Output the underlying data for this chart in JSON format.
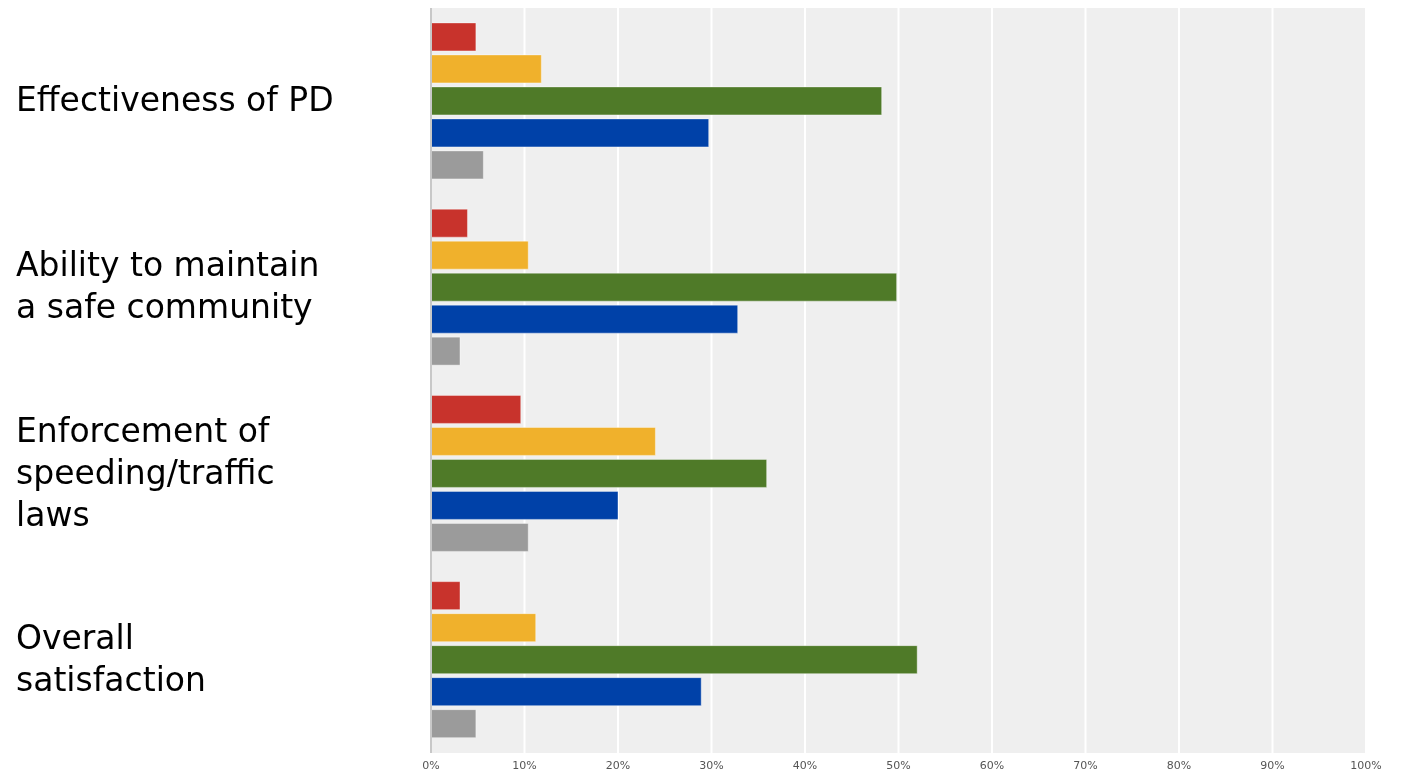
{
  "chart_data": {
    "type": "bar",
    "orientation": "horizontal",
    "categories": [
      "Effectiveness of PD",
      "Ability to maintain a safe community",
      "Enforcement of speeding/traffic laws",
      "Overall satisfaction"
    ],
    "series": [
      {
        "color": "#c8332c",
        "values": [
          4.8,
          3.9,
          9.6,
          3.1
        ]
      },
      {
        "color": "#f0b12c",
        "values": [
          11.8,
          10.4,
          24.0,
          11.2
        ]
      },
      {
        "color": "#4f7a28",
        "values": [
          48.2,
          49.8,
          35.9,
          52.0
        ]
      },
      {
        "color": "#0041a8",
        "values": [
          29.7,
          32.8,
          20.0,
          28.9
        ]
      },
      {
        "color": "#9b9b9b",
        "values": [
          5.6,
          3.1,
          10.4,
          4.8
        ]
      }
    ],
    "xlim": [
      0,
      100
    ],
    "xticks": [
      {
        "value": 0,
        "label": "0%"
      },
      {
        "value": 10,
        "label": "10%"
      },
      {
        "value": 20,
        "label": "20%"
      },
      {
        "value": 30,
        "label": "30%"
      },
      {
        "value": 40,
        "label": "40%"
      },
      {
        "value": 50,
        "label": "50%"
      },
      {
        "value": 60,
        "label": "60%"
      },
      {
        "value": 70,
        "label": "70%"
      },
      {
        "value": 80,
        "label": "80%"
      },
      {
        "value": 90,
        "label": "90%"
      },
      {
        "value": 100,
        "label": "100%"
      }
    ],
    "grid": "x",
    "legend": false
  }
}
